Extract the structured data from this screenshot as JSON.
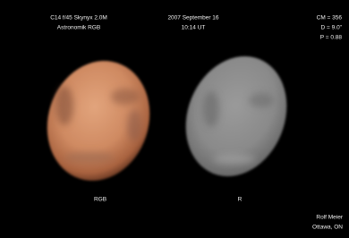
{
  "header": {
    "equipment": [
      "C14 f/45 Skynyx 2.0M",
      "Astronomik RGB"
    ],
    "date": [
      "2007 September 16",
      "10:14 UT"
    ],
    "params": [
      "CM = 356",
      "D = 9.0\"",
      "P = 0.88"
    ]
  },
  "images": [
    {
      "label": "RGB"
    },
    {
      "label": "R"
    }
  ],
  "credit": [
    "Rolf Meier",
    "Ottawa, ON"
  ]
}
